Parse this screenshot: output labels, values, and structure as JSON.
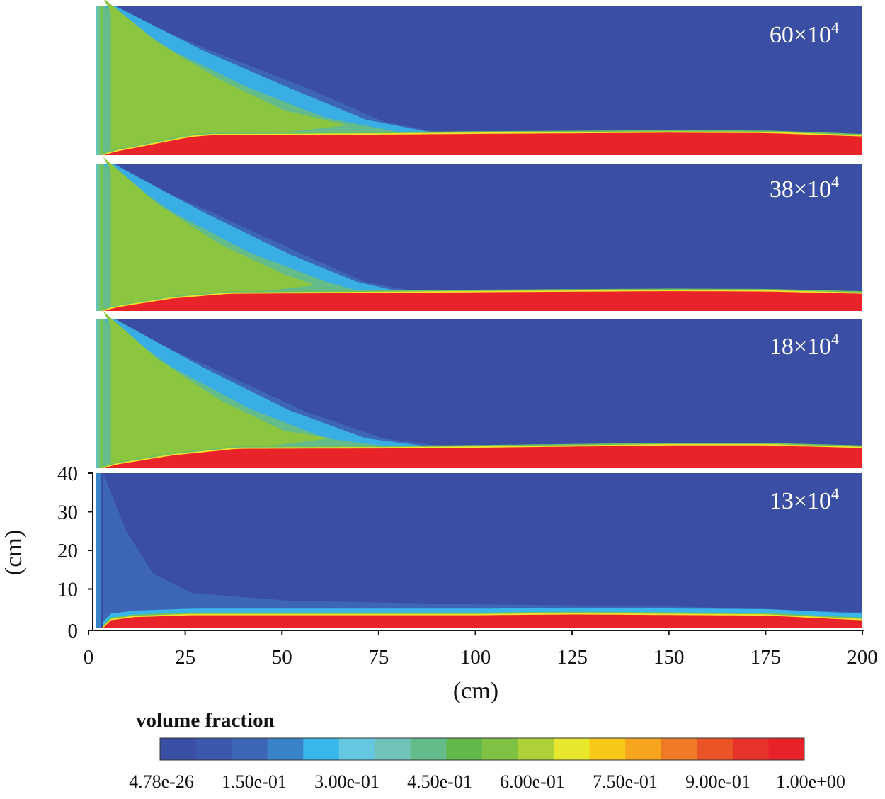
{
  "chart_data": {
    "type": "heatmap",
    "description_units": "volume fraction contour",
    "x": {
      "label": "(cm)",
      "range": [
        0,
        200
      ],
      "ticks": [
        {
          "value": 0,
          "label": "0"
        },
        {
          "value": 25,
          "label": "25"
        },
        {
          "value": 50,
          "label": "50"
        },
        {
          "value": 75,
          "label": "75"
        },
        {
          "value": 100,
          "label": "100"
        },
        {
          "value": 125,
          "label": "125"
        },
        {
          "value": 150,
          "label": "150"
        },
        {
          "value": 175,
          "label": "175"
        },
        {
          "value": 200,
          "label": "200"
        }
      ]
    },
    "y": {
      "label": "(cm)",
      "range": [
        0,
        40
      ],
      "ticks": [
        {
          "value": 0,
          "label": "0"
        },
        {
          "value": 10,
          "label": "10"
        },
        {
          "value": 20,
          "label": "20"
        },
        {
          "value": 30,
          "label": "30"
        },
        {
          "value": 40,
          "label": "40"
        }
      ]
    },
    "panels": [
      {
        "name": "60x10^4",
        "label": {
          "base": "60×10",
          "exp": "4"
        },
        "bed_profile": [
          [
            2,
            0
          ],
          [
            5,
            1
          ],
          [
            15,
            3
          ],
          [
            25,
            5
          ],
          [
            30,
            5.4
          ],
          [
            75,
            5.6
          ],
          [
            100,
            5.8
          ],
          [
            150,
            6.1
          ],
          [
            175,
            6.0
          ],
          [
            200,
            5.1
          ]
        ],
        "green_plume_front": [
          [
            2,
            40
          ],
          [
            20,
            28
          ],
          [
            40,
            18
          ],
          [
            60,
            10
          ],
          [
            80,
            6
          ]
        ],
        "cyan_front": [
          [
            2,
            40
          ],
          [
            30,
            28
          ],
          [
            55,
            18
          ],
          [
            75,
            9
          ],
          [
            90,
            6
          ]
        ]
      },
      {
        "name": "38x10^4",
        "label": {
          "base": "38×10",
          "exp": "4"
        },
        "bed_profile": [
          [
            2,
            0
          ],
          [
            5,
            1
          ],
          [
            20,
            3.5
          ],
          [
            35,
            4.8
          ],
          [
            75,
            5.0
          ],
          [
            100,
            5.2
          ],
          [
            150,
            5.5
          ],
          [
            175,
            5.4
          ],
          [
            200,
            4.8
          ]
        ],
        "green_plume_front": [
          [
            2,
            40
          ],
          [
            20,
            27
          ],
          [
            40,
            16
          ],
          [
            60,
            8
          ],
          [
            70,
            5
          ]
        ],
        "cyan_front": [
          [
            2,
            40
          ],
          [
            30,
            27
          ],
          [
            55,
            15
          ],
          [
            70,
            8
          ],
          [
            85,
            5
          ]
        ]
      },
      {
        "name": "18x10^4",
        "label": {
          "base": "18×10",
          "exp": "4"
        },
        "bed_profile": [
          [
            2,
            0
          ],
          [
            5,
            1
          ],
          [
            20,
            3.5
          ],
          [
            37,
            5.3
          ],
          [
            75,
            5.4
          ],
          [
            100,
            5.6
          ],
          [
            150,
            6.2
          ],
          [
            175,
            6.2
          ],
          [
            200,
            5.5
          ]
        ],
        "green_plume_front": [
          [
            2,
            40
          ],
          [
            20,
            27
          ],
          [
            40,
            16
          ],
          [
            60,
            8
          ],
          [
            75,
            6
          ]
        ],
        "cyan_front": [
          [
            2,
            40
          ],
          [
            30,
            27
          ],
          [
            55,
            15
          ],
          [
            75,
            8
          ],
          [
            90,
            6
          ]
        ]
      },
      {
        "name": "13x10^4",
        "label": {
          "base": "13×10",
          "exp": "4"
        },
        "bed_profile": [
          [
            2,
            0
          ],
          [
            4,
            2
          ],
          [
            10,
            2.8
          ],
          [
            25,
            3.3
          ],
          [
            100,
            3.3
          ],
          [
            125,
            3.5
          ],
          [
            175,
            3.2
          ],
          [
            200,
            2.0
          ]
        ],
        "light_blue_front": [
          [
            2,
            40
          ],
          [
            8,
            25
          ],
          [
            15,
            14
          ],
          [
            25,
            9
          ],
          [
            50,
            7
          ],
          [
            100,
            6
          ],
          [
            150,
            5.5
          ],
          [
            200,
            4
          ]
        ]
      }
    ],
    "colorbar": {
      "title": "volume fraction",
      "range": [
        0,
        1
      ],
      "colors": [
        "#3a4ea4",
        "#3c58ad",
        "#3d66b6",
        "#3b83c9",
        "#39b6ea",
        "#65c7e0",
        "#70c3b7",
        "#63bc8a",
        "#62b949",
        "#7fc243",
        "#aed038",
        "#e7e82c",
        "#f8c818",
        "#f7a41e",
        "#ee7a26",
        "#ea5426",
        "#e8332b",
        "#e72329"
      ],
      "tick_labels": [
        "4.78e-26",
        "1.50e-01",
        "3.00e-01",
        "4.50e-01",
        "6.00e-01",
        "7.50e-01",
        "9.00e-01",
        "1.00e+00"
      ]
    }
  }
}
